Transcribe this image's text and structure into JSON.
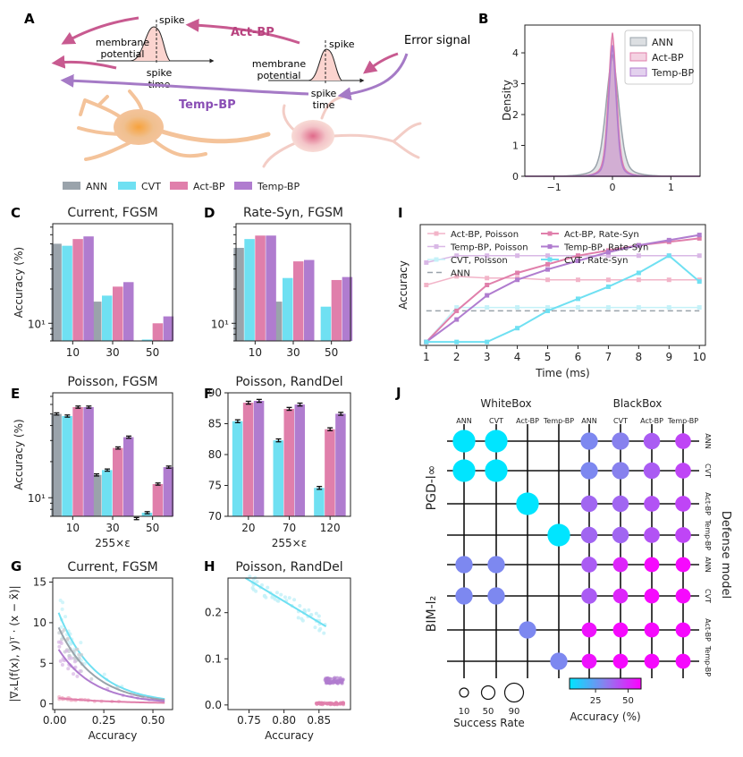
{
  "figure": {
    "panel_letters": [
      "A",
      "B",
      "C",
      "D",
      "E",
      "F",
      "G",
      "H",
      "I",
      "J"
    ],
    "legend_main": [
      {
        "name": "ANN",
        "color": "#9aa3ab"
      },
      {
        "name": "CVT",
        "color": "#6fe0f2"
      },
      {
        "name": "Act-BP",
        "color": "#e07fab"
      },
      {
        "name": "Temp-BP",
        "color": "#b07ccf"
      }
    ]
  },
  "schematic": {
    "act_bp_label": "Act-BP",
    "temp_bp_label": "Temp-BP",
    "error_signal": "Error signal",
    "spike": "spike",
    "membrane_potential": "membrane potential",
    "spike_time": "spike time"
  },
  "chart_data": [
    {
      "panel": "B",
      "type": "area",
      "title": "",
      "xlabel": "",
      "ylabel": "Density",
      "xlim": [
        -1.5,
        1.5
      ],
      "ylim": [
        0,
        4.9
      ],
      "xticks": [
        "−1",
        "0",
        "1"
      ],
      "yticks": [
        "0",
        "1",
        "2",
        "3",
        "4"
      ],
      "legend_position": "top-right",
      "series": [
        {
          "name": "ANN",
          "sigma": 0.11,
          "peak": 3.95
        },
        {
          "name": "Act-BP",
          "sigma": 0.07,
          "peak": 4.65
        },
        {
          "name": "Temp-BP",
          "sigma": 0.065,
          "peak": 4.25
        }
      ]
    },
    {
      "panel": "C",
      "type": "bar",
      "title": "Current, FGSM",
      "ylabel": "Accuracy (%)",
      "xlabel": "",
      "yscale": "log",
      "ylim": [
        7,
        75
      ],
      "ytick_label": "10¹",
      "categories": [
        "10",
        "30",
        "50"
      ],
      "series": [
        {
          "name": "ANN",
          "values": [
            50,
            15.5,
            6.5
          ]
        },
        {
          "name": "CVT",
          "values": [
            48,
            17.5,
            7.2
          ]
        },
        {
          "name": "Act-BP",
          "values": [
            55,
            21,
            10
          ]
        },
        {
          "name": "Temp-BP",
          "values": [
            58,
            23,
            11.5
          ]
        }
      ]
    },
    {
      "panel": "D",
      "type": "bar",
      "title": "Rate-Syn, FGSM",
      "ylabel": "",
      "xlabel": "",
      "yscale": "log",
      "ylim": [
        7,
        75
      ],
      "ytick_label": "10¹",
      "categories": [
        "10",
        "30",
        "50"
      ],
      "series": [
        {
          "name": "ANN",
          "values": [
            46,
            15.5,
            6.5
          ]
        },
        {
          "name": "CVT",
          "values": [
            55,
            25,
            14
          ]
        },
        {
          "name": "Act-BP",
          "values": [
            59,
            35,
            24
          ]
        },
        {
          "name": "Temp-BP",
          "values": [
            59,
            36,
            25.5
          ]
        }
      ]
    },
    {
      "panel": "E",
      "type": "bar",
      "title": "Poisson, FGSM",
      "ylabel": "Accuracy (%)",
      "xlabel": "255×ε",
      "yscale": "log",
      "ylim": [
        7,
        75
      ],
      "ytick_label": "10¹",
      "categories": [
        "10",
        "30",
        "50"
      ],
      "series": [
        {
          "name": "ANN",
          "values": [
            50,
            15.5,
            6.7
          ]
        },
        {
          "name": "CVT",
          "values": [
            48,
            17,
            7.5
          ]
        },
        {
          "name": "Act-BP",
          "values": [
            57,
            26,
            13
          ]
        },
        {
          "name": "Temp-BP",
          "values": [
            57,
            32,
            18
          ]
        }
      ]
    },
    {
      "panel": "F",
      "type": "bar",
      "title": "Poisson, RandDel",
      "ylabel": "",
      "xlabel": "255×ε",
      "yscale": "linear",
      "ylim": [
        70,
        90
      ],
      "yticks": [
        70,
        75,
        80,
        85,
        90
      ],
      "categories": [
        "20",
        "70",
        "120"
      ],
      "series": [
        {
          "name": "CVT",
          "values": [
            85.4,
            82.3,
            74.6
          ]
        },
        {
          "name": "Act-BP",
          "values": [
            88.4,
            87.4,
            84.1
          ]
        },
        {
          "name": "Temp-BP",
          "values": [
            88.7,
            88.1,
            86.6
          ]
        }
      ]
    },
    {
      "panel": "G",
      "type": "scatter",
      "title": "Current, FGSM",
      "ylabel": "|∇ₓL(f(x), y)ᵀ · (x − x̃)|",
      "xlabel": "Accuracy",
      "xlim": [
        -0.01,
        0.6
      ],
      "ylim": [
        -0.7,
        15.5
      ],
      "xticks": [
        0,
        0.25,
        0.5
      ],
      "yticks": [
        0,
        5,
        10,
        15
      ],
      "series": [
        {
          "name": "CVT",
          "fit": {
            "a": 12.5,
            "b": 5.4
          }
        },
        {
          "name": "ANN",
          "fit": {
            "a": 10.5,
            "b": 5.5
          }
        },
        {
          "name": "Temp-BP",
          "fit": {
            "a": 7.5,
            "b": 5.6
          }
        },
        {
          "name": "Act-BP",
          "fit": {
            "a": 0.75,
            "b": 3.2
          }
        }
      ]
    },
    {
      "panel": "H",
      "type": "scatter",
      "title": "Poisson, RandDel",
      "ylabel": "",
      "xlabel": "Accuracy",
      "xlim": [
        0.72,
        0.895
      ],
      "ylim": [
        -0.01,
        0.275
      ],
      "xticks": [
        0.75,
        0.8,
        0.85
      ],
      "yticks": [
        0,
        0.1,
        0.2
      ],
      "series": [
        {
          "name": "CVT",
          "fit": [
            [
              0.745,
              0.275
            ],
            [
              0.86,
              0.17
            ]
          ]
        },
        {
          "name": "Temp-BP",
          "cluster": {
            "x": [
              0.858,
              0.885
            ],
            "y": 0.053
          }
        },
        {
          "name": "Act-BP",
          "cluster": {
            "x": [
              0.845,
              0.885
            ],
            "y": 0.003
          }
        }
      ]
    },
    {
      "panel": "I",
      "type": "line",
      "title": "",
      "ylabel": "Accuracy",
      "xlabel": "Time (ms)",
      "x": [
        1,
        2,
        3,
        4,
        5,
        6,
        7,
        8,
        9,
        10
      ],
      "xlim": [
        0.8,
        10.2
      ],
      "series": [
        {
          "name": "Act-BP, Poisson",
          "values": [
            0.35,
            0.4,
            0.39,
            0.39,
            0.38,
            0.38,
            0.38,
            0.38,
            0.38,
            0.38
          ]
        },
        {
          "name": "Temp-BP, Poisson",
          "values": [
            0.48,
            0.52,
            0.52,
            0.52,
            0.52,
            0.52,
            0.52,
            0.52,
            0.52,
            0.52
          ]
        },
        {
          "name": "CVT, Poisson",
          "values": [
            0.02,
            0.22,
            0.22,
            0.22,
            0.22,
            0.22,
            0.22,
            0.22,
            0.22,
            0.22
          ]
        },
        {
          "name": "ANN",
          "values": [
            0.2,
            0.2,
            0.2,
            0.2,
            0.2,
            0.2,
            0.2,
            0.2,
            0.2,
            0.2
          ]
        },
        {
          "name": "Act-BP, Rate-Syn",
          "values": [
            0.02,
            0.2,
            0.35,
            0.42,
            0.47,
            0.52,
            0.55,
            0.58,
            0.6,
            0.62
          ]
        },
        {
          "name": "Temp-BP, Rate-Syn",
          "values": [
            0.02,
            0.15,
            0.29,
            0.38,
            0.44,
            0.49,
            0.54,
            0.58,
            0.61,
            0.64
          ]
        },
        {
          "name": "CVT, Rate-Syn",
          "values": [
            0.02,
            0.02,
            0.02,
            0.1,
            0.2,
            0.27,
            0.34,
            0.42,
            0.52,
            0.37
          ]
        }
      ]
    },
    {
      "panel": "J",
      "type": "heatmap",
      "whitebox_label": "WhiteBox",
      "blackbox_label": "BlackBox",
      "defense_model_label": "Defense model",
      "row_group_labels": [
        "PGD-l∞",
        "BIM-l₂"
      ],
      "column_labels": [
        "ANN",
        "CVT",
        "Act-BP",
        "Temp-BP",
        "ANN",
        "CVT",
        "Act-BP",
        "Temp-BP"
      ],
      "row_labels": [
        "ANN",
        "CVT",
        "Act-BP",
        "Temp-BP",
        "ANN",
        "CVT",
        "Act-BP",
        "Temp-BP"
      ],
      "size_legend_title": "Success Rate",
      "size_legend": [
        10,
        50,
        90
      ],
      "color_legend_title": "Accuracy (%)",
      "color_ticks": [
        25,
        50
      ],
      "cells": [
        {
          "r": 0,
          "c": 0,
          "rate": 90,
          "acc": 5
        },
        {
          "r": 0,
          "c": 1,
          "rate": 90,
          "acc": 5
        },
        {
          "r": 1,
          "c": 0,
          "rate": 90,
          "acc": 5
        },
        {
          "r": 1,
          "c": 1,
          "rate": 90,
          "acc": 5
        },
        {
          "r": 2,
          "c": 2,
          "rate": 90,
          "acc": 5
        },
        {
          "r": 3,
          "c": 3,
          "rate": 90,
          "acc": 5
        },
        {
          "r": 0,
          "c": 4,
          "rate": 55,
          "acc": 30
        },
        {
          "r": 0,
          "c": 5,
          "rate": 55,
          "acc": 32
        },
        {
          "r": 0,
          "c": 6,
          "rate": 50,
          "acc": 40
        },
        {
          "r": 0,
          "c": 7,
          "rate": 45,
          "acc": 45
        },
        {
          "r": 1,
          "c": 4,
          "rate": 55,
          "acc": 30
        },
        {
          "r": 1,
          "c": 5,
          "rate": 55,
          "acc": 32
        },
        {
          "r": 1,
          "c": 6,
          "rate": 50,
          "acc": 40
        },
        {
          "r": 1,
          "c": 7,
          "rate": 45,
          "acc": 45
        },
        {
          "r": 2,
          "c": 4,
          "rate": 50,
          "acc": 38
        },
        {
          "r": 2,
          "c": 5,
          "rate": 50,
          "acc": 38
        },
        {
          "r": 2,
          "c": 6,
          "rate": 45,
          "acc": 42
        },
        {
          "r": 2,
          "c": 7,
          "rate": 45,
          "acc": 45
        },
        {
          "r": 3,
          "c": 4,
          "rate": 50,
          "acc": 38
        },
        {
          "r": 3,
          "c": 5,
          "rate": 50,
          "acc": 38
        },
        {
          "r": 3,
          "c": 6,
          "rate": 45,
          "acc": 42
        },
        {
          "r": 3,
          "c": 7,
          "rate": 45,
          "acc": 45
        },
        {
          "r": 4,
          "c": 0,
          "rate": 55,
          "acc": 30
        },
        {
          "r": 4,
          "c": 1,
          "rate": 55,
          "acc": 30
        },
        {
          "r": 5,
          "c": 0,
          "rate": 55,
          "acc": 30
        },
        {
          "r": 5,
          "c": 1,
          "rate": 55,
          "acc": 30
        },
        {
          "r": 6,
          "c": 2,
          "rate": 55,
          "acc": 30
        },
        {
          "r": 7,
          "c": 3,
          "rate": 55,
          "acc": 30
        },
        {
          "r": 4,
          "c": 4,
          "rate": 45,
          "acc": 40
        },
        {
          "r": 4,
          "c": 5,
          "rate": 40,
          "acc": 52
        },
        {
          "r": 4,
          "c": 6,
          "rate": 40,
          "acc": 58
        },
        {
          "r": 4,
          "c": 7,
          "rate": 40,
          "acc": 58
        },
        {
          "r": 5,
          "c": 4,
          "rate": 45,
          "acc": 40
        },
        {
          "r": 5,
          "c": 5,
          "rate": 40,
          "acc": 52
        },
        {
          "r": 5,
          "c": 6,
          "rate": 40,
          "acc": 58
        },
        {
          "r": 5,
          "c": 7,
          "rate": 40,
          "acc": 58
        },
        {
          "r": 6,
          "c": 4,
          "rate": 40,
          "acc": 56
        },
        {
          "r": 6,
          "c": 5,
          "rate": 40,
          "acc": 58
        },
        {
          "r": 6,
          "c": 6,
          "rate": 40,
          "acc": 58
        },
        {
          "r": 6,
          "c": 7,
          "rate": 40,
          "acc": 58
        },
        {
          "r": 7,
          "c": 4,
          "rate": 40,
          "acc": 56
        },
        {
          "r": 7,
          "c": 5,
          "rate": 40,
          "acc": 58
        },
        {
          "r": 7,
          "c": 6,
          "rate": 40,
          "acc": 58
        },
        {
          "r": 7,
          "c": 7,
          "rate": 40,
          "acc": 58
        }
      ]
    }
  ],
  "colors": {
    "ANN": "#9aa3ab",
    "CVT": "#6fe0f2",
    "Act-BP": "#e07fab",
    "Temp-BP": "#b07ccf",
    "act_arrow": "#c85a90",
    "temp_arrow": "#a57ac6",
    "act_light": "#f2b4c8",
    "temp_light": "#d9b8e6",
    "cvt_light": "#c4f1f8",
    "neuron": "#f4c39a",
    "cmap_low": "#00e5ff",
    "cmap_high": "#ff00ff"
  }
}
